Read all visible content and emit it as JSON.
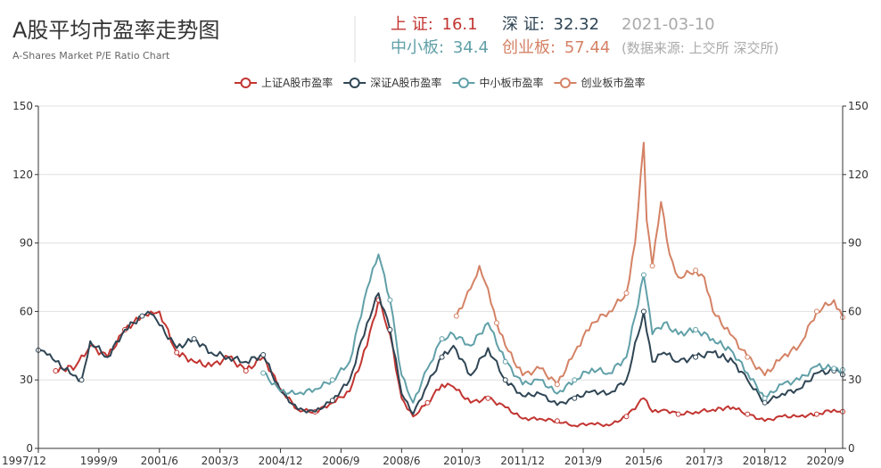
{
  "header": {
    "title": "A股平均市盈率走势图",
    "subtitle": "A-Shares Market P/E Ratio Chart"
  },
  "stats": {
    "sh_label": "上 证:",
    "sh_value": "16.1",
    "sz_label": "深 证:",
    "sz_value": "32.32",
    "date": "2021-03-10",
    "sme_label": "中小板:",
    "sme_value": "34.4",
    "gem_label": "创业板:",
    "gem_value": "57.44",
    "source": "(数据来源: 上交所 深交所)"
  },
  "colors": {
    "sh": "#c23531",
    "sz": "#2f4554",
    "sme": "#61a0a8",
    "gem": "#d48265"
  },
  "chart_data": {
    "type": "line",
    "ylim": [
      0,
      150
    ],
    "y_ticks": [
      0,
      30,
      60,
      90,
      120,
      150
    ],
    "x_ticks": [
      "1997/12",
      "1999/9",
      "2001/6",
      "2003/3",
      "2004/12",
      "2006/9",
      "2008/6",
      "2010/3",
      "2011/12",
      "2013/9",
      "2015/6",
      "2017/3",
      "2018/12",
      "2020/9"
    ],
    "legend_position": "top-center",
    "grid": true,
    "series": [
      {
        "name": "上证A股市盈率",
        "color_key": "sh",
        "points": [
          [
            "1998-06",
            34
          ],
          [
            "1999-01",
            36
          ],
          [
            "1999-06",
            45
          ],
          [
            "1999-12",
            40
          ],
          [
            "2000-06",
            52
          ],
          [
            "2000-12",
            58
          ],
          [
            "2001-03",
            60
          ],
          [
            "2001-06",
            60
          ],
          [
            "2001-12",
            42
          ],
          [
            "2002-06",
            38
          ],
          [
            "2002-12",
            36
          ],
          [
            "2003-06",
            40
          ],
          [
            "2003-12",
            34
          ],
          [
            "2004-06",
            40
          ],
          [
            "2004-12",
            26
          ],
          [
            "2005-06",
            17
          ],
          [
            "2005-12",
            16
          ],
          [
            "2006-06",
            20
          ],
          [
            "2006-12",
            25
          ],
          [
            "2007-06",
            45
          ],
          [
            "2007-10",
            65
          ],
          [
            "2008-02",
            50
          ],
          [
            "2008-06",
            22
          ],
          [
            "2008-10",
            14
          ],
          [
            "2009-03",
            20
          ],
          [
            "2009-08",
            28
          ],
          [
            "2009-12",
            27
          ],
          [
            "2010-06",
            20
          ],
          [
            "2010-12",
            22
          ],
          [
            "2011-06",
            18
          ],
          [
            "2011-12",
            13
          ],
          [
            "2012-06",
            13
          ],
          [
            "2012-12",
            12
          ],
          [
            "2013-06",
            10
          ],
          [
            "2013-12",
            11
          ],
          [
            "2014-06",
            10
          ],
          [
            "2014-12",
            14
          ],
          [
            "2015-06",
            22
          ],
          [
            "2015-09",
            16
          ],
          [
            "2016-01",
            17
          ],
          [
            "2016-06",
            15
          ],
          [
            "2016-12",
            16
          ],
          [
            "2017-06",
            17
          ],
          [
            "2018-01",
            18
          ],
          [
            "2018-06",
            15
          ],
          [
            "2018-12",
            12
          ],
          [
            "2019-06",
            14
          ],
          [
            "2019-12",
            14
          ],
          [
            "2020-06",
            15
          ],
          [
            "2020-12",
            17
          ],
          [
            "2021-03",
            16.1
          ]
        ]
      },
      {
        "name": "深证A股市盈率",
        "color_key": "sz",
        "points": [
          [
            "1997-12",
            43
          ],
          [
            "1998-03",
            41
          ],
          [
            "1998-06",
            38
          ],
          [
            "1998-12",
            32
          ],
          [
            "1999-03",
            30
          ],
          [
            "1999-06",
            47
          ],
          [
            "1999-12",
            40
          ],
          [
            "2000-06",
            52
          ],
          [
            "2000-12",
            58
          ],
          [
            "2001-03",
            59
          ],
          [
            "2001-06",
            54
          ],
          [
            "2001-12",
            44
          ],
          [
            "2002-06",
            48
          ],
          [
            "2002-12",
            42
          ],
          [
            "2003-06",
            40
          ],
          [
            "2003-12",
            38
          ],
          [
            "2004-06",
            41
          ],
          [
            "2004-12",
            25
          ],
          [
            "2005-06",
            17
          ],
          [
            "2005-12",
            16
          ],
          [
            "2006-06",
            21
          ],
          [
            "2006-12",
            30
          ],
          [
            "2007-06",
            55
          ],
          [
            "2007-10",
            68
          ],
          [
            "2008-02",
            52
          ],
          [
            "2008-06",
            24
          ],
          [
            "2008-10",
            15
          ],
          [
            "2009-03",
            28
          ],
          [
            "2009-08",
            40
          ],
          [
            "2009-12",
            45
          ],
          [
            "2010-06",
            32
          ],
          [
            "2010-12",
            44
          ],
          [
            "2011-06",
            30
          ],
          [
            "2011-12",
            23
          ],
          [
            "2012-06",
            24
          ],
          [
            "2012-12",
            19
          ],
          [
            "2013-06",
            22
          ],
          [
            "2013-12",
            25
          ],
          [
            "2014-06",
            24
          ],
          [
            "2014-12",
            30
          ],
          [
            "2015-06",
            60
          ],
          [
            "2015-09",
            38
          ],
          [
            "2016-01",
            42
          ],
          [
            "2016-06",
            38
          ],
          [
            "2016-12",
            40
          ],
          [
            "2017-06",
            42
          ],
          [
            "2018-01",
            38
          ],
          [
            "2018-06",
            30
          ],
          [
            "2018-12",
            20
          ],
          [
            "2019-06",
            24
          ],
          [
            "2019-12",
            26
          ],
          [
            "2020-06",
            33
          ],
          [
            "2020-12",
            34
          ],
          [
            "2021-03",
            32.32
          ]
        ]
      },
      {
        "name": "中小板市盈率",
        "color_key": "sme",
        "points": [
          [
            "2004-06",
            33
          ],
          [
            "2004-12",
            25
          ],
          [
            "2005-06",
            24
          ],
          [
            "2005-12",
            26
          ],
          [
            "2006-06",
            30
          ],
          [
            "2006-12",
            38
          ],
          [
            "2007-06",
            70
          ],
          [
            "2007-10",
            85
          ],
          [
            "2008-02",
            65
          ],
          [
            "2008-06",
            32
          ],
          [
            "2008-10",
            20
          ],
          [
            "2009-03",
            35
          ],
          [
            "2009-08",
            48
          ],
          [
            "2009-12",
            50
          ],
          [
            "2010-06",
            45
          ],
          [
            "2010-12",
            55
          ],
          [
            "2011-06",
            38
          ],
          [
            "2011-12",
            28
          ],
          [
            "2012-06",
            30
          ],
          [
            "2012-12",
            24
          ],
          [
            "2013-06",
            30
          ],
          [
            "2013-12",
            35
          ],
          [
            "2014-06",
            33
          ],
          [
            "2014-12",
            40
          ],
          [
            "2015-06",
            76
          ],
          [
            "2015-09",
            50
          ],
          [
            "2016-01",
            55
          ],
          [
            "2016-06",
            50
          ],
          [
            "2016-12",
            52
          ],
          [
            "2017-06",
            48
          ],
          [
            "2018-01",
            42
          ],
          [
            "2018-06",
            33
          ],
          [
            "2018-12",
            22
          ],
          [
            "2019-06",
            28
          ],
          [
            "2019-12",
            30
          ],
          [
            "2020-06",
            36
          ],
          [
            "2020-12",
            35
          ],
          [
            "2021-03",
            34.4
          ]
        ]
      },
      {
        "name": "创业板市盈率",
        "color_key": "gem",
        "points": [
          [
            "2010-01",
            58
          ],
          [
            "2010-06",
            70
          ],
          [
            "2010-09",
            80
          ],
          [
            "2010-12",
            70
          ],
          [
            "2011-03",
            55
          ],
          [
            "2011-06",
            45
          ],
          [
            "2011-12",
            32
          ],
          [
            "2012-06",
            35
          ],
          [
            "2012-12",
            28
          ],
          [
            "2013-06",
            42
          ],
          [
            "2013-12",
            55
          ],
          [
            "2014-06",
            60
          ],
          [
            "2014-12",
            68
          ],
          [
            "2015-03",
            90
          ],
          [
            "2015-06",
            134
          ],
          [
            "2015-07",
            100
          ],
          [
            "2015-09",
            80
          ],
          [
            "2015-12",
            108
          ],
          [
            "2016-03",
            85
          ],
          [
            "2016-06",
            75
          ],
          [
            "2016-12",
            78
          ],
          [
            "2017-03",
            75
          ],
          [
            "2017-06",
            60
          ],
          [
            "2017-12",
            50
          ],
          [
            "2018-06",
            40
          ],
          [
            "2018-12",
            32
          ],
          [
            "2019-06",
            40
          ],
          [
            "2019-12",
            45
          ],
          [
            "2020-06",
            60
          ],
          [
            "2020-12",
            65
          ],
          [
            "2021-03",
            57.44
          ]
        ]
      }
    ]
  }
}
